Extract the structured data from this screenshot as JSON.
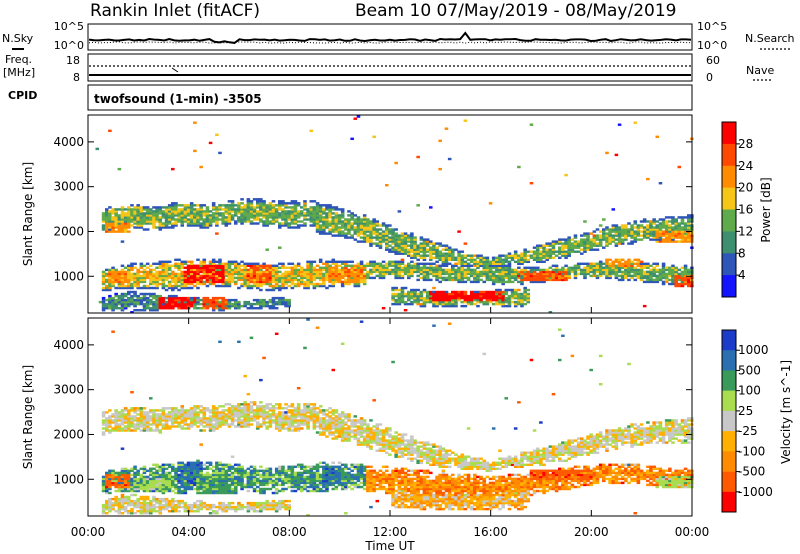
{
  "header": {
    "station": "Rankin Inlet (fitACF)",
    "beam_dates": "Beam 10 07/May/2019 - 08/May/2019"
  },
  "noise_panel": {
    "left_label": "N.Sky",
    "right_label": "N.Search",
    "left_ticks": [
      "10^5",
      "10^0"
    ],
    "right_ticks": [
      "10^5",
      "10^0"
    ]
  },
  "freq_panel": {
    "left_label_1": "Freq.",
    "left_label_2": "[MHz]",
    "right_label": "Nave",
    "left_ticks": [
      "18",
      "8"
    ],
    "right_ticks": [
      "60",
      "0"
    ]
  },
  "cpid": {
    "label": "CPID",
    "text": "twofsound (1-min) -3505"
  },
  "colors": {
    "power": [
      "#1414ff",
      "#2e55b8",
      "#3e8f70",
      "#5faa4a",
      "#f5c518",
      "#ff8c00",
      "#ff4800",
      "#ff0000"
    ],
    "velocity": [
      "#ff0000",
      "#ff5a00",
      "#ff8c00",
      "#ffb000",
      "#c8c8c8",
      "#aadc50",
      "#3a9a5a",
      "#2a70b0",
      "#1a3cc8"
    ]
  },
  "chart_data": [
    {
      "type": "heatmap",
      "name": "power",
      "ylabel": "Slant Range [km]",
      "ylim": [
        180,
        4600
      ],
      "yticks": [
        1000,
        2000,
        3000,
        4000
      ],
      "x_range_hours": [
        0,
        24
      ],
      "colorbar": {
        "label": "Power [dB]",
        "ticks": [
          "4",
          "8",
          "12",
          "16",
          "20",
          "24",
          "28"
        ]
      },
      "bands": [
        {
          "from": 0.5,
          "to": 9.0,
          "lo": [
            1950,
            2050,
            2000,
            2100,
            2050,
            2150,
            2100,
            2050,
            2100
          ],
          "hi": [
            2500,
            2600,
            2550,
            2650,
            2600,
            2700,
            2700,
            2650,
            2700
          ],
          "level": 3
        },
        {
          "from": 9.0,
          "to": 16.0,
          "lo": [
            1950,
            1850,
            1700,
            1500,
            1350,
            1250,
            1200,
            1150
          ],
          "hi": [
            2650,
            2500,
            2350,
            2100,
            1900,
            1700,
            1500,
            1400
          ],
          "level": 3
        },
        {
          "from": 16.0,
          "to": 24.0,
          "lo": [
            1200,
            1250,
            1300,
            1400,
            1550,
            1650,
            1750,
            1800,
            1800
          ],
          "hi": [
            1400,
            1550,
            1700,
            1850,
            2000,
            2150,
            2250,
            2300,
            2350
          ],
          "level": 3
        },
        {
          "from": 0.5,
          "to": 11.0,
          "lo": [
            650,
            700,
            700,
            650,
            700,
            750,
            700,
            650,
            700,
            700,
            750,
            750
          ],
          "hi": [
            1150,
            1250,
            1300,
            1350,
            1400,
            1350,
            1300,
            1250,
            1300,
            1350,
            1350,
            1300
          ],
          "level": 4
        },
        {
          "from": 11.0,
          "to": 24.0,
          "lo": [
            900,
            950,
            900,
            850,
            850,
            800,
            800,
            850,
            900,
            950,
            900,
            850,
            800,
            800
          ],
          "hi": [
            1300,
            1350,
            1300,
            1250,
            1250,
            1250,
            1200,
            1200,
            1250,
            1300,
            1350,
            1300,
            1250,
            1200
          ],
          "level": 3
        },
        {
          "from": 12.0,
          "to": 17.5,
          "lo": [
            350,
            320,
            300,
            300,
            300,
            300,
            320
          ],
          "hi": [
            750,
            700,
            650,
            650,
            650,
            700,
            750
          ],
          "level": 3
        },
        {
          "from": 0.5,
          "to": 8.0,
          "lo": [
            200,
            220,
            200,
            250,
            230,
            220,
            250,
            260,
            280
          ],
          "hi": [
            520,
            650,
            600,
            550,
            500,
            480,
            450,
            500,
            520
          ],
          "level": 2
        }
      ],
      "hotspots": [
        {
          "t": [
            3.8,
            5.4
          ],
          "r": [
            850,
            1250
          ],
          "level": 7
        },
        {
          "t": [
            6.2,
            7.2
          ],
          "r": [
            850,
            1250
          ],
          "level": 6
        },
        {
          "t": [
            2.8,
            4.2
          ],
          "r": [
            250,
            500
          ],
          "level": 7
        },
        {
          "t": [
            4.5,
            5.5
          ],
          "r": [
            250,
            520
          ],
          "level": 6
        },
        {
          "t": [
            13.5,
            16.5
          ],
          "r": [
            420,
            650
          ],
          "level": 7
        },
        {
          "t": [
            9.5,
            11.0
          ],
          "r": [
            850,
            1200
          ],
          "level": 5
        },
        {
          "t": [
            0.6,
            1.6
          ],
          "r": [
            1950,
            2200
          ],
          "level": 5
        },
        {
          "t": [
            22.5,
            24.0
          ],
          "r": [
            1750,
            2000
          ],
          "level": 5
        },
        {
          "t": [
            17.0,
            19.0
          ],
          "r": [
            900,
            1100
          ],
          "level": 6
        },
        {
          "t": [
            20.5,
            22.0
          ],
          "r": [
            1200,
            1350
          ],
          "level": 5
        },
        {
          "t": [
            0.7,
            1.5
          ],
          "r": [
            820,
            1100
          ],
          "level": 5
        },
        {
          "t": [
            23.3,
            24.0
          ],
          "r": [
            750,
            1000
          ],
          "level": 6
        }
      ]
    },
    {
      "type": "heatmap",
      "name": "velocity",
      "ylabel": "Slant Range [km]",
      "xlabel": "Time UT",
      "ylim": [
        180,
        4600
      ],
      "yticks": [
        1000,
        2000,
        3000,
        4000
      ],
      "x_range_hours": [
        0,
        24
      ],
      "xticks": [
        "00:00",
        "04:00",
        "08:00",
        "12:00",
        "16:00",
        "20:00",
        "00:00"
      ],
      "colorbar": {
        "label": "Velocity [m s^-1]",
        "ticks": [
          "1000",
          "500",
          "100",
          "25",
          "-25",
          "-100",
          "-500",
          "-1000"
        ]
      },
      "bands": [
        {
          "from": 0.5,
          "to": 9.0,
          "lo": [
            1950,
            2050,
            2000,
            2100,
            2050,
            2150,
            2100,
            2050,
            2100
          ],
          "hi": [
            2500,
            2600,
            2550,
            2650,
            2600,
            2700,
            2700,
            2650,
            2700
          ],
          "level": 4
        },
        {
          "from": 9.0,
          "to": 16.0,
          "lo": [
            1950,
            1850,
            1700,
            1500,
            1350,
            1250,
            1200,
            1150
          ],
          "hi": [
            2650,
            2500,
            2350,
            2100,
            1900,
            1700,
            1500,
            1400
          ],
          "level": 4
        },
        {
          "from": 16.0,
          "to": 24.0,
          "lo": [
            1200,
            1250,
            1300,
            1400,
            1550,
            1650,
            1750,
            1800,
            1800
          ],
          "hi": [
            1400,
            1550,
            1700,
            1850,
            2000,
            2150,
            2250,
            2300,
            2350
          ],
          "level": 4
        },
        {
          "from": 0.5,
          "to": 11.0,
          "lo": [
            650,
            700,
            700,
            650,
            700,
            750,
            700,
            650,
            700,
            700,
            750,
            750
          ],
          "hi": [
            1150,
            1250,
            1300,
            1350,
            1400,
            1350,
            1300,
            1250,
            1300,
            1350,
            1350,
            1300
          ],
          "level": 6
        },
        {
          "from": 11.0,
          "to": 24.0,
          "lo": [
            700,
            650,
            600,
            550,
            500,
            500,
            550,
            650,
            750,
            850,
            900,
            850,
            800,
            800
          ],
          "hi": [
            1300,
            1250,
            1200,
            1150,
            1100,
            1050,
            1100,
            1150,
            1250,
            1300,
            1350,
            1300,
            1250,
            1200
          ],
          "level": 2
        },
        {
          "from": 12.0,
          "to": 17.5,
          "lo": [
            350,
            320,
            300,
            300,
            300,
            300,
            320
          ],
          "hi": [
            750,
            700,
            650,
            650,
            650,
            700,
            750
          ],
          "level": 3
        },
        {
          "from": 0.5,
          "to": 8.0,
          "lo": [
            200,
            220,
            200,
            250,
            230,
            220,
            250,
            260,
            280
          ],
          "hi": [
            520,
            650,
            600,
            550,
            500,
            480,
            450,
            500,
            520
          ],
          "level": 4
        }
      ],
      "hotspots": [
        {
          "t": [
            3.5,
            4.5
          ],
          "r": [
            800,
            1350
          ],
          "level": 7
        },
        {
          "t": [
            9.3,
            10.0
          ],
          "r": [
            900,
            1300
          ],
          "level": 7
        },
        {
          "t": [
            0.6,
            1.6
          ],
          "r": [
            800,
            1100
          ],
          "level": 1
        },
        {
          "t": [
            1.8,
            3.2
          ],
          "r": [
            750,
            1000
          ],
          "level": 5
        },
        {
          "t": [
            17.5,
            20.0
          ],
          "r": [
            950,
            1200
          ],
          "level": 1
        },
        {
          "t": [
            22.5,
            24.0
          ],
          "r": [
            800,
            1050
          ],
          "level": 5
        },
        {
          "t": [
            4.2,
            5.8
          ],
          "r": [
            650,
            950
          ],
          "level": 6
        }
      ]
    }
  ]
}
